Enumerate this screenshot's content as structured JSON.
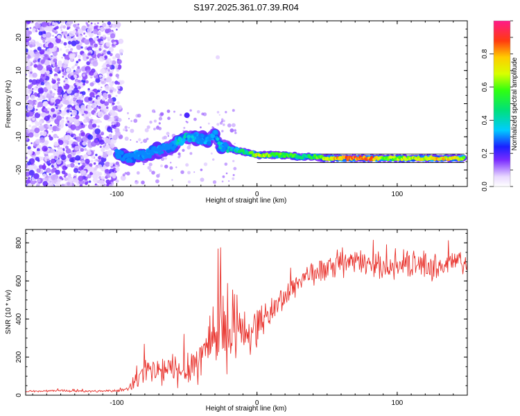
{
  "title": "S197.2025.361.07.39.R04",
  "chart_data": [
    {
      "type": "heatmap",
      "name": "spectrogram",
      "xlabel": "Height of straight line (km)",
      "ylabel": "Frequency (Hz)",
      "xlim": [
        -165,
        150
      ],
      "ylim": [
        -25,
        25
      ],
      "x_ticks": [
        -100,
        0,
        100
      ],
      "x_tick_labels": [
        "-100",
        "0",
        "100"
      ],
      "y_ticks": [
        20,
        10,
        0,
        -10,
        -20
      ],
      "y_tick_labels": [
        "20",
        "10",
        "0",
        "-10",
        "-20"
      ],
      "colorbar": {
        "label": "Normalized spectral amplitude",
        "range": [
          0,
          1
        ],
        "ticks": [
          0,
          0.2,
          0.4,
          0.6,
          0.8
        ],
        "tick_labels": [
          "0.0",
          "0.2",
          "0.4",
          "0.6",
          "0.8"
        ]
      },
      "signal_track": {
        "x": [
          -100,
          -95,
          -90,
          -85,
          -80,
          -75,
          -70,
          -65,
          -60,
          -55,
          -50,
          -45,
          -40,
          -35,
          -30,
          -27,
          -25,
          -20,
          -15,
          -10,
          -5,
          0,
          10,
          20,
          30,
          40,
          50,
          60,
          70,
          80,
          90,
          100,
          110,
          120,
          130,
          140,
          148
        ],
        "frequency_hz": [
          -15,
          -16,
          -16.5,
          -15.5,
          -15.5,
          -14.5,
          -14,
          -13.5,
          -13,
          -11,
          -10,
          -10.5,
          -10.5,
          -11.5,
          -9,
          -13,
          -13,
          -13.5,
          -14,
          -14.5,
          -15,
          -15.5,
          -15.5,
          -15.5,
          -16,
          -16,
          -16.5,
          -16.5,
          -16.5,
          -16.5,
          -16.5,
          -16.5,
          -16.5,
          -16.5,
          -16.5,
          -16.5,
          -16.5
        ],
        "amplitude": [
          0.2,
          0.15,
          0.15,
          0.2,
          0.2,
          0.2,
          0.2,
          0.25,
          0.2,
          0.45,
          0.35,
          0.3,
          0.25,
          0.3,
          0.25,
          0.35,
          0.3,
          0.35,
          0.4,
          0.45,
          0.5,
          0.7,
          0.6,
          0.55,
          0.5,
          0.5,
          0.65,
          0.8,
          0.85,
          0.85,
          0.65,
          0.6,
          0.65,
          0.7,
          0.75,
          0.7,
          0.65
        ]
      },
      "noise_region_x": [
        -165,
        -95
      ]
    },
    {
      "type": "line",
      "name": "snr",
      "xlabel": "Height of straight line (km)",
      "ylabel": "SNR (10 * v/v)",
      "xlim": [
        -165,
        150
      ],
      "ylim": [
        0,
        870
      ],
      "x_ticks": [
        -100,
        0,
        100
      ],
      "x_tick_labels": [
        "-100",
        "0",
        "100"
      ],
      "y_ticks": [
        0,
        200,
        400,
        600,
        800
      ],
      "y_tick_labels": [
        "0",
        "200",
        "400",
        "600",
        "800"
      ],
      "series": [
        {
          "name": "SNR",
          "color": "#e8302a",
          "x": [
            -165,
            -150,
            -140,
            -130,
            -120,
            -110,
            -100,
            -92,
            -88,
            -85,
            -80,
            -75,
            -70,
            -65,
            -60,
            -55,
            -50,
            -45,
            -40,
            -35,
            -30,
            -25,
            -20,
            -15,
            -10,
            -5,
            0,
            5,
            10,
            15,
            20,
            25,
            30,
            35,
            40,
            50,
            60,
            70,
            80,
            90,
            100,
            110,
            120,
            130,
            140,
            150
          ],
          "values": [
            20,
            22,
            25,
            22,
            20,
            22,
            25,
            30,
            60,
            90,
            110,
            120,
            130,
            120,
            140,
            120,
            150,
            170,
            190,
            280,
            330,
            360,
            300,
            330,
            340,
            330,
            370,
            400,
            440,
            480,
            520,
            560,
            600,
            630,
            640,
            660,
            680,
            700,
            690,
            680,
            670,
            690,
            680,
            670,
            700,
            690
          ],
          "spread": [
            5,
            5,
            5,
            5,
            5,
            5,
            6,
            8,
            40,
            60,
            70,
            70,
            70,
            70,
            80,
            70,
            90,
            90,
            110,
            150,
            180,
            180,
            140,
            120,
            100,
            100,
            90,
            70,
            60,
            60,
            60,
            55,
            55,
            55,
            55,
            55,
            55,
            55,
            55,
            55,
            55,
            55,
            60,
            60,
            60,
            60
          ]
        }
      ]
    }
  ]
}
